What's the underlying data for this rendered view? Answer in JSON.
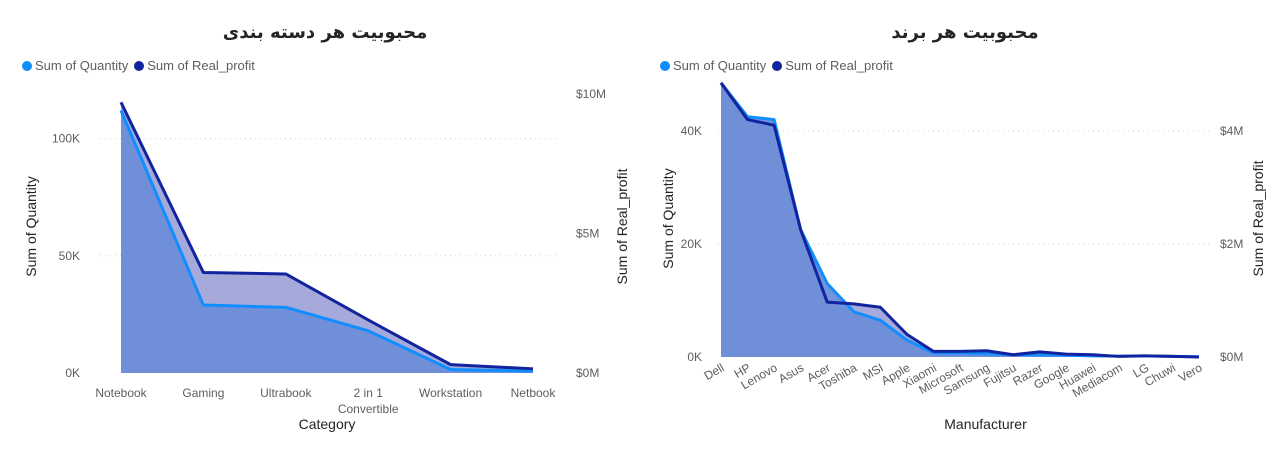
{
  "colors": {
    "quantity": "#118dff",
    "profit": "#12239e",
    "fill_main": "#6b8ed9",
    "fill_diff": "#a0a5d9",
    "grid": "#d0d0d0",
    "axis_text": "#605e5c",
    "title_text": "#252423"
  },
  "chart_data": [
    {
      "type": "area",
      "title": "محبوبیت هر دسته بندی",
      "legend": [
        "Sum of Quantity",
        "Sum of Real_profit"
      ],
      "xlabel": "Category",
      "ylabel": "Sum of Quantity",
      "y2label": "Sum of Real_profit",
      "categories": [
        "Notebook",
        "Gaming",
        "Ultrabook",
        "2 in 1 Convertible",
        "Workstation",
        "Netbook"
      ],
      "category_lines": [
        [
          "Notebook"
        ],
        [
          "Gaming"
        ],
        [
          "Ultrabook"
        ],
        [
          "2 in 1",
          "Convertible"
        ],
        [
          "Workstation"
        ],
        [
          "Netbook"
        ]
      ],
      "series": [
        {
          "name": "Sum of Quantity",
          "axis": "left",
          "values": [
            112000,
            29000,
            28000,
            18000,
            1500,
            800
          ]
        },
        {
          "name": "Sum of Real_profit",
          "axis": "right",
          "values": [
            9.7,
            3.6,
            3.55,
            1.9,
            0.3,
            0.15
          ]
        }
      ],
      "ylim": [
        0,
        125000
      ],
      "yticks": [
        0,
        50000,
        100000
      ],
      "ytick_labels": [
        "0K",
        "50K",
        "100K"
      ],
      "y2lim": [
        0,
        10.5
      ],
      "y2ticks": [
        0,
        5,
        10
      ],
      "y2tick_labels": [
        "$0M",
        "$5M",
        "$10M"
      ]
    },
    {
      "type": "area",
      "title": "محبوبیت هر برند",
      "legend": [
        "Sum of Quantity",
        "Sum of Real_profit"
      ],
      "xlabel": "Manufacturer",
      "ylabel": "Sum of Quantity",
      "y2label": "Sum of Real_profit",
      "categories": [
        "Dell",
        "HP",
        "Lenovo",
        "Asus",
        "Acer",
        "Toshiba",
        "MSI",
        "Apple",
        "Xiaomi",
        "Microsoft",
        "Samsung",
        "Fujitsu",
        "Razer",
        "Google",
        "Huawei",
        "Mediacom",
        "LG",
        "Chuwi",
        "Vero"
      ],
      "series": [
        {
          "name": "Sum of Quantity",
          "axis": "left",
          "values": [
            48500,
            42500,
            42000,
            22500,
            13000,
            8000,
            6500,
            3000,
            700,
            700,
            600,
            400,
            400,
            300,
            200,
            150,
            200,
            100,
            50
          ]
        },
        {
          "name": "Sum of Real_profit",
          "axis": "right",
          "values": [
            4.85,
            4.2,
            4.1,
            2.25,
            0.97,
            0.94,
            0.88,
            0.4,
            0.1,
            0.1,
            0.11,
            0.04,
            0.09,
            0.05,
            0.04,
            0.01,
            0.02,
            0.01,
            0.0
          ]
        }
      ],
      "ylim": [
        0,
        49000
      ],
      "yticks": [
        0,
        20000,
        40000
      ],
      "ytick_labels": [
        "0K",
        "20K",
        "40K"
      ],
      "y2lim": [
        0,
        4.9
      ],
      "y2ticks": [
        0,
        2,
        4
      ],
      "y2tick_labels": [
        "$0M",
        "$2M",
        "$4M"
      ]
    }
  ]
}
